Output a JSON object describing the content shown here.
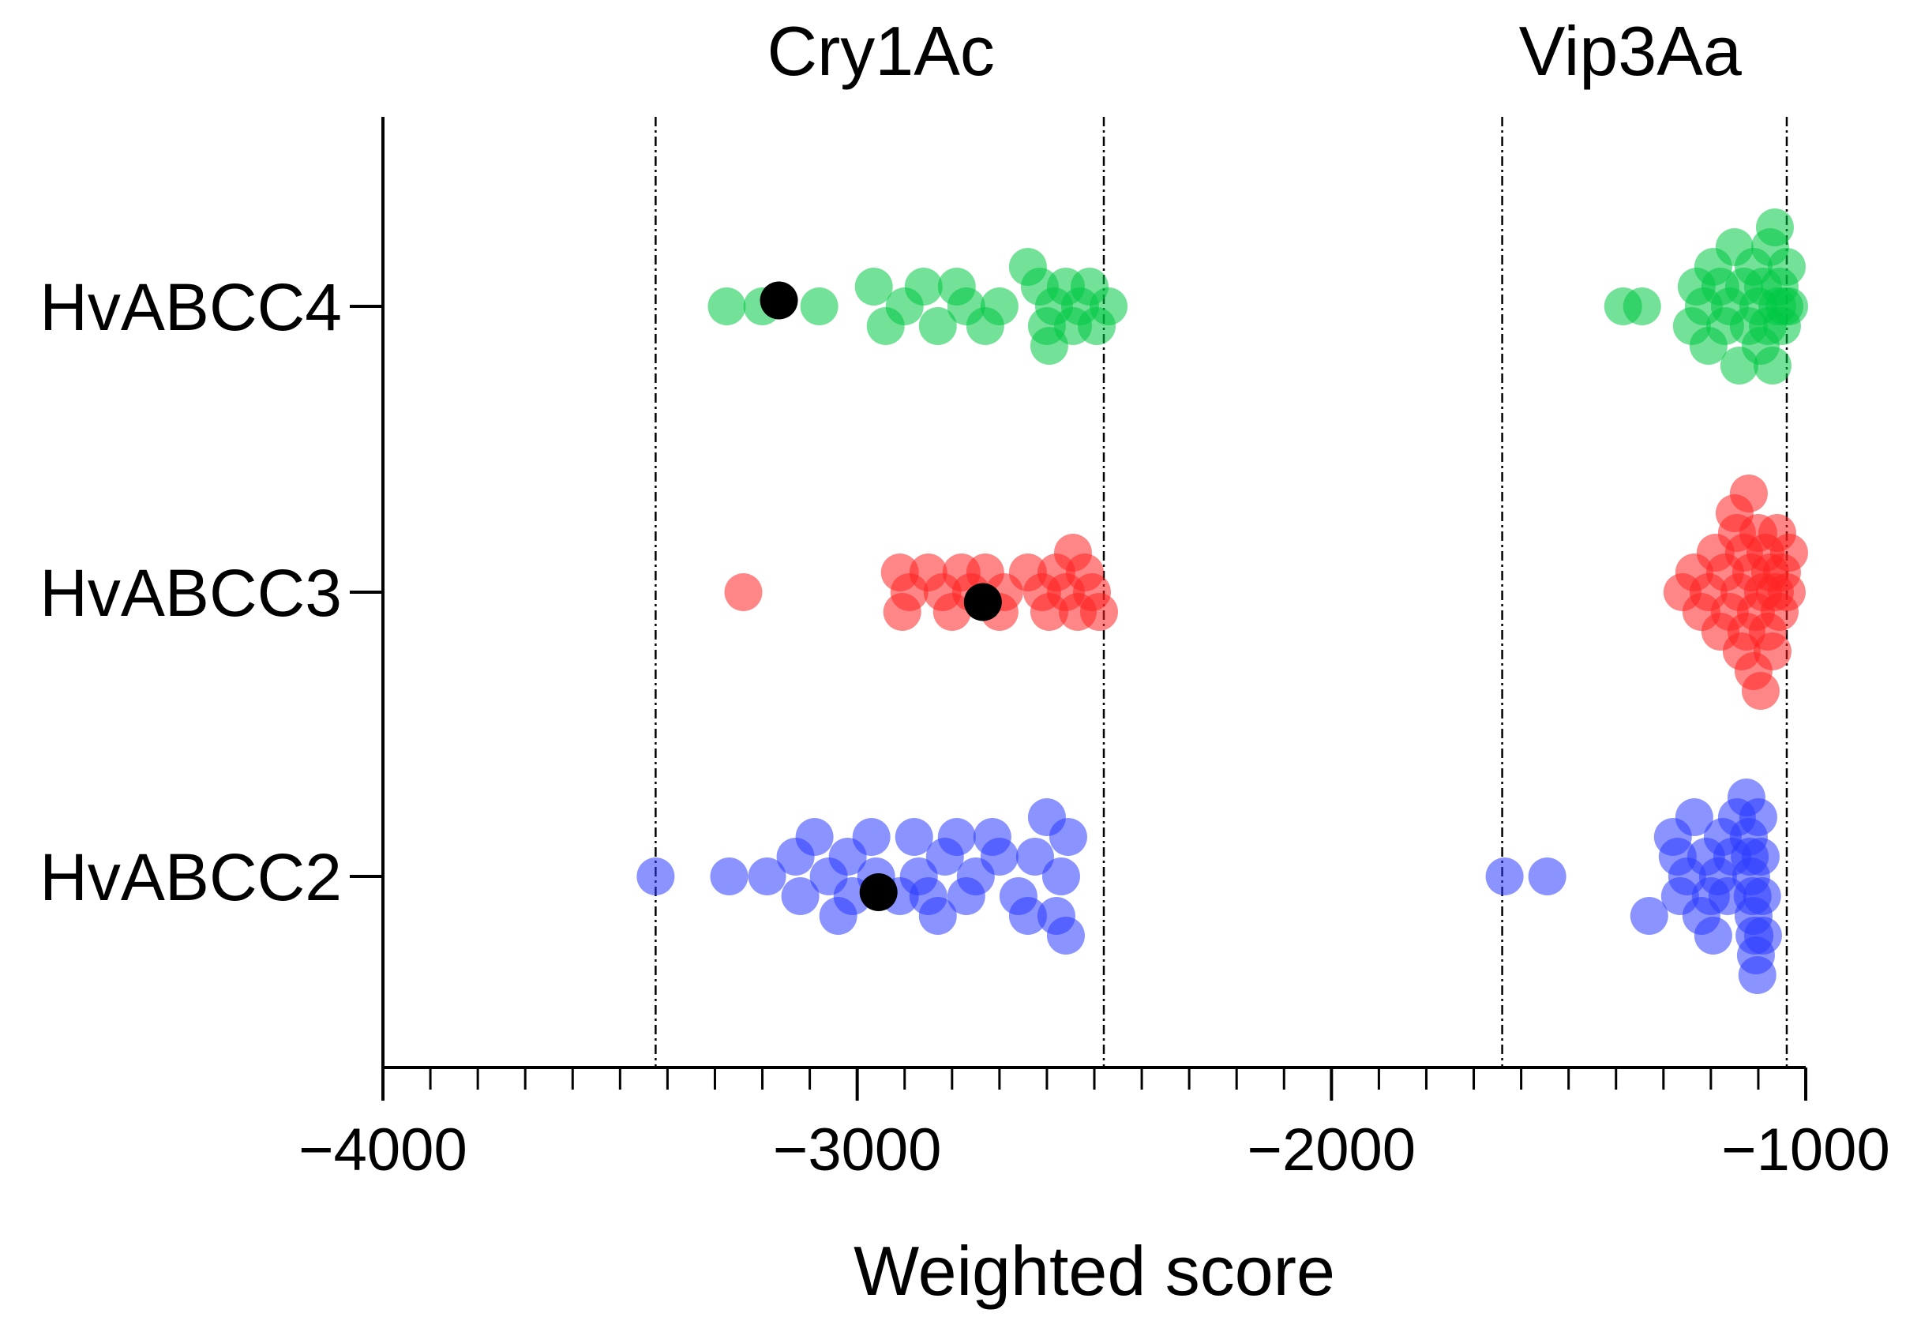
{
  "chart_data": {
    "type": "scatter",
    "subtype": "horizontal beeswarm",
    "xlabel": "Weighted score",
    "ylabel": "",
    "xlim": [
      -4000,
      -1000
    ],
    "x_ticks": [
      -4000,
      -3000,
      -2000,
      -1000
    ],
    "x_tick_labels": [
      "−4000",
      "−3000",
      "−2000",
      "−1000"
    ],
    "categories": [
      "HvABCC4",
      "HvABCC3",
      "HvABCC2"
    ],
    "group_labels": [
      {
        "text": "Cry1Ac",
        "x": -2950
      },
      {
        "text": "Vip3Aa",
        "x": -1370
      }
    ],
    "reference_lines": [
      -3425,
      -2480,
      -1640,
      -1040
    ],
    "highlight_color": "#000000",
    "series": [
      {
        "name": "HvABCC4",
        "color": "#00c944",
        "points": [
          {
            "x": -3275,
            "offset": 0
          },
          {
            "x": -3200,
            "offset": 0
          },
          {
            "x": -3080,
            "offset": 0
          },
          {
            "x": -2965,
            "offset": 0.5
          },
          {
            "x": -2940,
            "offset": -0.5
          },
          {
            "x": -2900,
            "offset": 0
          },
          {
            "x": -2860,
            "offset": 0.5
          },
          {
            "x": -2830,
            "offset": -0.5
          },
          {
            "x": -2790,
            "offset": 0.5
          },
          {
            "x": -2770,
            "offset": 0
          },
          {
            "x": -2730,
            "offset": -0.5
          },
          {
            "x": -2700,
            "offset": 0
          },
          {
            "x": -2640,
            "offset": 1
          },
          {
            "x": -2615,
            "offset": 0.5
          },
          {
            "x": -2600,
            "offset": -0.5
          },
          {
            "x": -2595,
            "offset": -1
          },
          {
            "x": -2585,
            "offset": 0
          },
          {
            "x": -2560,
            "offset": 0.5
          },
          {
            "x": -2545,
            "offset": -0.5
          },
          {
            "x": -2530,
            "offset": 0
          },
          {
            "x": -2510,
            "offset": 0.5
          },
          {
            "x": -2495,
            "offset": -0.5
          },
          {
            "x": -2470,
            "offset": 0
          },
          {
            "x": -1385,
            "offset": 0
          },
          {
            "x": -1345,
            "offset": 0
          },
          {
            "x": -1240,
            "offset": -0.5
          },
          {
            "x": -1230,
            "offset": 0.5
          },
          {
            "x": -1215,
            "offset": 0
          },
          {
            "x": -1205,
            "offset": -1
          },
          {
            "x": -1195,
            "offset": 1
          },
          {
            "x": -1180,
            "offset": 0.5
          },
          {
            "x": -1170,
            "offset": -0.5
          },
          {
            "x": -1160,
            "offset": 0
          },
          {
            "x": -1150,
            "offset": 1.5
          },
          {
            "x": -1140,
            "offset": -1.5
          },
          {
            "x": -1130,
            "offset": 0.5
          },
          {
            "x": -1120,
            "offset": -0.5
          },
          {
            "x": -1110,
            "offset": 1
          },
          {
            "x": -1100,
            "offset": 0
          },
          {
            "x": -1095,
            "offset": -1
          },
          {
            "x": -1090,
            "offset": 0.5
          },
          {
            "x": -1080,
            "offset": -0.5
          },
          {
            "x": -1075,
            "offset": 1.5
          },
          {
            "x": -1070,
            "offset": -1.5
          },
          {
            "x": -1065,
            "offset": 2
          },
          {
            "x": -1060,
            "offset": 0
          },
          {
            "x": -1055,
            "offset": 0.5
          },
          {
            "x": -1050,
            "offset": -0.5
          },
          {
            "x": -1045,
            "offset": 0
          },
          {
            "x": -1040,
            "offset": 1
          },
          {
            "x": -1035,
            "offset": 0
          }
        ],
        "highlight": {
          "x": -3165,
          "offset": 0.15
        }
      },
      {
        "name": "HvABCC3",
        "color": "#ff2222",
        "points": [
          {
            "x": -3240,
            "offset": 0
          },
          {
            "x": -2910,
            "offset": 0.5
          },
          {
            "x": -2905,
            "offset": -0.5
          },
          {
            "x": -2890,
            "offset": 0
          },
          {
            "x": -2850,
            "offset": 0.5
          },
          {
            "x": -2820,
            "offset": 0
          },
          {
            "x": -2800,
            "offset": -0.5
          },
          {
            "x": -2780,
            "offset": 0.5
          },
          {
            "x": -2760,
            "offset": 0
          },
          {
            "x": -2730,
            "offset": 0.5
          },
          {
            "x": -2700,
            "offset": -0.5
          },
          {
            "x": -2690,
            "offset": 0
          },
          {
            "x": -2640,
            "offset": 0.5
          },
          {
            "x": -2610,
            "offset": 0
          },
          {
            "x": -2595,
            "offset": -0.5
          },
          {
            "x": -2580,
            "offset": 0.5
          },
          {
            "x": -2560,
            "offset": 0
          },
          {
            "x": -2545,
            "offset": 1
          },
          {
            "x": -2535,
            "offset": -0.5
          },
          {
            "x": -2520,
            "offset": 0.5
          },
          {
            "x": -2505,
            "offset": 0
          },
          {
            "x": -2490,
            "offset": -0.5
          },
          {
            "x": -1260,
            "offset": 0
          },
          {
            "x": -1235,
            "offset": 0.5
          },
          {
            "x": -1220,
            "offset": -0.5
          },
          {
            "x": -1205,
            "offset": 0
          },
          {
            "x": -1190,
            "offset": 1
          },
          {
            "x": -1180,
            "offset": -1
          },
          {
            "x": -1170,
            "offset": 0.5
          },
          {
            "x": -1160,
            "offset": -0.5
          },
          {
            "x": -1150,
            "offset": 2
          },
          {
            "x": -1145,
            "offset": 1.5
          },
          {
            "x": -1140,
            "offset": 0
          },
          {
            "x": -1135,
            "offset": -1.5
          },
          {
            "x": -1130,
            "offset": 1
          },
          {
            "x": -1125,
            "offset": -1
          },
          {
            "x": -1120,
            "offset": 2.5
          },
          {
            "x": -1115,
            "offset": 0.5
          },
          {
            "x": -1110,
            "offset": -2
          },
          {
            "x": -1105,
            "offset": -0.5
          },
          {
            "x": -1100,
            "offset": 1.5
          },
          {
            "x": -1095,
            "offset": -2.5
          },
          {
            "x": -1090,
            "offset": 0
          },
          {
            "x": -1085,
            "offset": 1
          },
          {
            "x": -1080,
            "offset": -1
          },
          {
            "x": -1075,
            "offset": 0.5
          },
          {
            "x": -1070,
            "offset": -1.5
          },
          {
            "x": -1065,
            "offset": 0
          },
          {
            "x": -1060,
            "offset": 1.5
          },
          {
            "x": -1055,
            "offset": -0.5
          },
          {
            "x": -1050,
            "offset": 0.5
          },
          {
            "x": -1040,
            "offset": 0
          },
          {
            "x": -1035,
            "offset": 1
          }
        ],
        "highlight": {
          "x": -2735,
          "offset": -0.25
        }
      },
      {
        "name": "HvABCC2",
        "color": "#2a3bff",
        "points": [
          {
            "x": -3425,
            "offset": 0
          },
          {
            "x": -3270,
            "offset": 0
          },
          {
            "x": -3190,
            "offset": 0
          },
          {
            "x": -3130,
            "offset": 0.5
          },
          {
            "x": -3120,
            "offset": -0.5
          },
          {
            "x": -3090,
            "offset": 1
          },
          {
            "x": -3060,
            "offset": 0
          },
          {
            "x": -3040,
            "offset": -1
          },
          {
            "x": -3020,
            "offset": 0.5
          },
          {
            "x": -3010,
            "offset": -0.5
          },
          {
            "x": -2970,
            "offset": 1
          },
          {
            "x": -2960,
            "offset": 0
          },
          {
            "x": -2910,
            "offset": -0.5
          },
          {
            "x": -2880,
            "offset": 1
          },
          {
            "x": -2870,
            "offset": 0
          },
          {
            "x": -2850,
            "offset": -0.5
          },
          {
            "x": -2830,
            "offset": -1
          },
          {
            "x": -2815,
            "offset": 0.5
          },
          {
            "x": -2790,
            "offset": 1
          },
          {
            "x": -2770,
            "offset": -0.5
          },
          {
            "x": -2750,
            "offset": 0
          },
          {
            "x": -2715,
            "offset": 1
          },
          {
            "x": -2700,
            "offset": 0.5
          },
          {
            "x": -2660,
            "offset": -0.5
          },
          {
            "x": -2640,
            "offset": -1
          },
          {
            "x": -2625,
            "offset": 0.5
          },
          {
            "x": -2600,
            "offset": 1.5
          },
          {
            "x": -2580,
            "offset": -1
          },
          {
            "x": -2570,
            "offset": 0
          },
          {
            "x": -2560,
            "offset": -1.5
          },
          {
            "x": -2555,
            "offset": 1
          },
          {
            "x": -1635,
            "offset": 0
          },
          {
            "x": -1545,
            "offset": 0
          },
          {
            "x": -1330,
            "offset": -1
          },
          {
            "x": -1280,
            "offset": 1
          },
          {
            "x": -1270,
            "offset": 0.5
          },
          {
            "x": -1265,
            "offset": -0.5
          },
          {
            "x": -1250,
            "offset": 0
          },
          {
            "x": -1235,
            "offset": 1.5
          },
          {
            "x": -1220,
            "offset": -1
          },
          {
            "x": -1210,
            "offset": 0.5
          },
          {
            "x": -1200,
            "offset": -0.5
          },
          {
            "x": -1195,
            "offset": -1.5
          },
          {
            "x": -1185,
            "offset": 0
          },
          {
            "x": -1175,
            "offset": 1
          },
          {
            "x": -1165,
            "offset": -0.5
          },
          {
            "x": -1155,
            "offset": 0.5
          },
          {
            "x": -1145,
            "offset": 1.5
          },
          {
            "x": -1125,
            "offset": 2
          },
          {
            "x": -1120,
            "offset": 1
          },
          {
            "x": -1118,
            "offset": 0.5
          },
          {
            "x": -1115,
            "offset": 0
          },
          {
            "x": -1112,
            "offset": -0.5
          },
          {
            "x": -1110,
            "offset": -1
          },
          {
            "x": -1108,
            "offset": -1.5
          },
          {
            "x": -1105,
            "offset": -2
          },
          {
            "x": -1102,
            "offset": -2.5
          },
          {
            "x": -1100,
            "offset": 1.5
          },
          {
            "x": -1095,
            "offset": 0.5
          },
          {
            "x": -1092,
            "offset": -0.5
          },
          {
            "x": -1090,
            "offset": -1.5
          }
        ],
        "highlight": {
          "x": -2955,
          "offset": -0.4
        }
      }
    ]
  }
}
